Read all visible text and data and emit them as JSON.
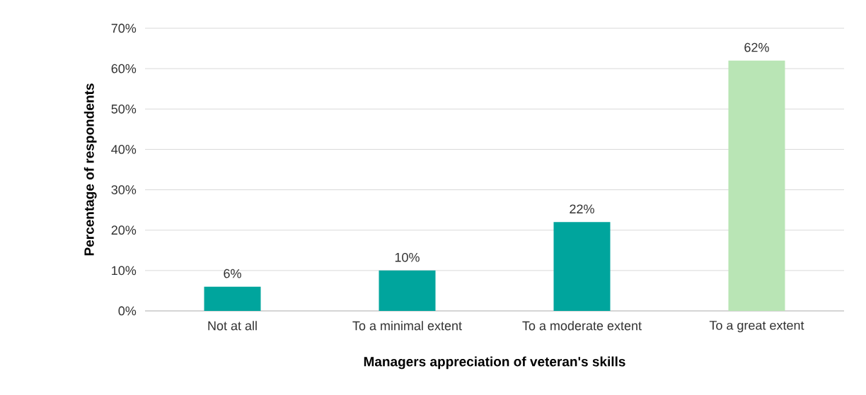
{
  "chart_data": {
    "type": "bar",
    "xlabel": "Managers appreciation of veteran's skills",
    "ylabel": "Percentage of respondents",
    "categories": [
      "Not at all",
      "To a minimal extent",
      "To a moderate extent",
      "To a great extent"
    ],
    "values": [
      6,
      10,
      22,
      62
    ],
    "colors": [
      "#00a59d",
      "#00a59d",
      "#00a59d",
      "#b9e5b5"
    ],
    "value_labels": [
      "6%",
      "10%",
      "22%",
      "62%"
    ],
    "ylim": [
      0,
      70
    ],
    "yticks": [
      {
        "value": 0,
        "label": "0%"
      },
      {
        "value": 10,
        "label": "10%"
      },
      {
        "value": 20,
        "label": "20%"
      },
      {
        "value": 30,
        "label": "30%"
      },
      {
        "value": 40,
        "label": "40%"
      },
      {
        "value": 50,
        "label": "50%"
      },
      {
        "value": 60,
        "label": "60%"
      },
      {
        "value": 70,
        "label": "70%"
      }
    ],
    "grid": "y"
  }
}
